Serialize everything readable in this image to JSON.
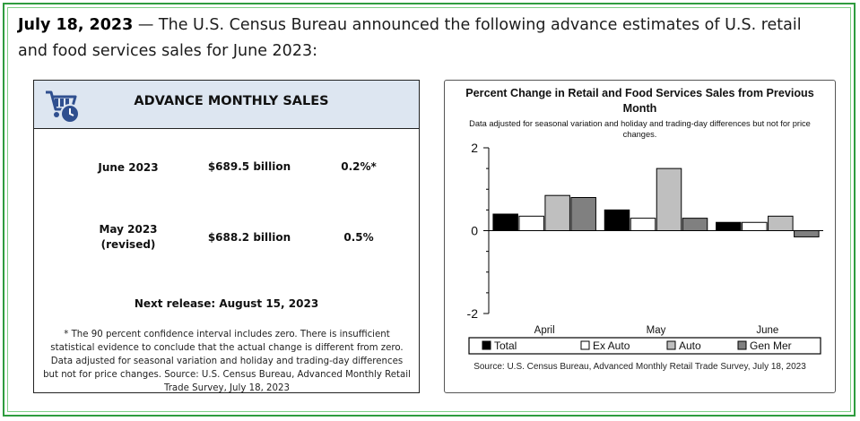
{
  "intro": {
    "date": "July 18, 2023",
    "text": " — The U.S. Census Bureau announced the following advance estimates of U.S. retail and food services sales for June 2023:"
  },
  "card": {
    "icon": "shopping-cart-clock-icon",
    "title": "ADVANCE MONTHLY SALES",
    "rows": [
      {
        "label": "June 2023",
        "value": "$689.5 billion",
        "pct": "0.2%*"
      },
      {
        "label": "May 2023",
        "label2": "(revised)",
        "value": "$688.2 billion",
        "pct": "0.5%"
      }
    ],
    "next_release": "Next release: August 15, 2023",
    "footnote1": "* The 90 percent confidence interval includes zero. There is insufficient statistical evidence to conclude that the actual change is different from zero.",
    "footnote2": "Data adjusted for seasonal variation and holiday and trading-day differences but not for price changes. Source: U.S. Census Bureau, Advanced Monthly Retail Trade Survey, July 18, 2023"
  },
  "colors": {
    "frame_border": "#2e9c3e",
    "header_bg": "#dde6f1",
    "total": "#000000",
    "ex_auto": "#ffffff",
    "auto": "#bfbfbf",
    "gen_mer": "#808080"
  },
  "chart": {
    "source": "Source: U.S. Census Bureau, Advanced Monthly Retail Trade Survey, July 18, 2023"
  },
  "chart_data": {
    "type": "bar",
    "title": "Percent Change in Retail and Food Services Sales from Previous Month",
    "subtitle": "Data adjusted for seasonal variation and holiday and trading-day differences but not for price changes.",
    "categories": [
      "April",
      "May",
      "June"
    ],
    "series": [
      {
        "name": "Total",
        "values": [
          0.4,
          0.5,
          0.2
        ]
      },
      {
        "name": "Ex Auto",
        "values": [
          0.35,
          0.3,
          0.2
        ]
      },
      {
        "name": "Auto",
        "values": [
          0.85,
          1.5,
          0.35
        ]
      },
      {
        "name": "Gen Mer",
        "values": [
          0.8,
          0.3,
          -0.15
        ]
      }
    ],
    "ylim": [
      -2,
      2
    ],
    "yticks": [
      -2,
      0,
      2
    ],
    "legend": "bottom",
    "xlabel": "",
    "ylabel": ""
  }
}
